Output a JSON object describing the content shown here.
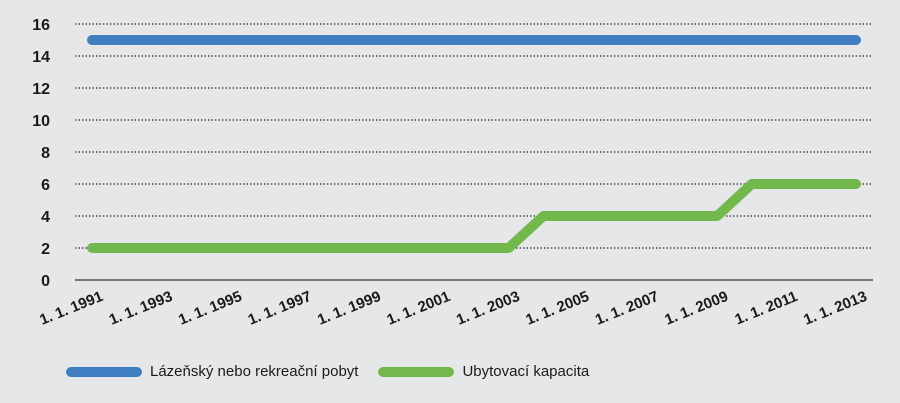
{
  "chart_data": {
    "type": "line",
    "x": [
      "1. 1. 1991",
      "1. 1. 1992",
      "1. 1. 1993",
      "1. 1. 1994",
      "1. 1. 1995",
      "1. 1. 1996",
      "1. 1. 1997",
      "1. 1. 1998",
      "1. 1. 1999",
      "1. 1. 2000",
      "1. 1. 2001",
      "1. 1. 2002",
      "1. 1. 2003",
      "1. 1. 2004",
      "1. 1. 2005",
      "1. 1. 2006",
      "1. 1. 2007",
      "1. 1. 2008",
      "1. 1. 2009",
      "1. 1. 2010",
      "1. 1. 2011",
      "1. 1. 2012",
      "1. 1. 2013"
    ],
    "x_tick_labels": [
      "1. 1. 1991",
      "1. 1. 1993",
      "1. 1. 1995",
      "1. 1. 1997",
      "1. 1. 1999",
      "1. 1. 2001",
      "1. 1. 2003",
      "1. 1. 2005",
      "1. 1. 2007",
      "1. 1. 2009",
      "1. 1. 2011",
      "1. 1. 2013"
    ],
    "series": [
      {
        "name": "Lázeňský nebo rekreační pobyt",
        "color": "#3f7fc1",
        "values": [
          15,
          15,
          15,
          15,
          15,
          15,
          15,
          15,
          15,
          15,
          15,
          15,
          15,
          15,
          15,
          15,
          15,
          15,
          15,
          15,
          15,
          15,
          15
        ]
      },
      {
        "name": "Ubytovací kapacita",
        "color": "#72b84c",
        "values": [
          2,
          2,
          2,
          2,
          2,
          2,
          2,
          2,
          2,
          2,
          2,
          2,
          2,
          4,
          4,
          4,
          4,
          4,
          4,
          6,
          6,
          6,
          6
        ]
      }
    ],
    "title": "",
    "xlabel": "",
    "ylabel": "",
    "ylim": [
      0,
      16
    ],
    "y_ticks": [
      0,
      2,
      4,
      6,
      8,
      10,
      12,
      14,
      16
    ],
    "grid": "horizontal dotted",
    "legend_position": "bottom-left"
  }
}
